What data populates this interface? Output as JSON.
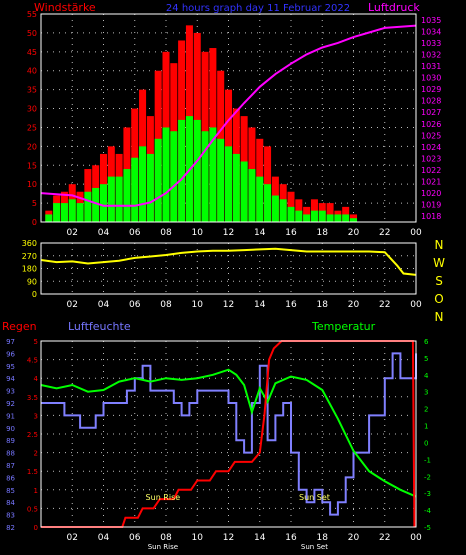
{
  "header": {
    "left_label": "Windstärke",
    "center_title": "24 hours graph day  11 Februar 2022",
    "right_label": "Luftdruck"
  },
  "colors": {
    "background": "#000000",
    "wind_gust": "#ff0000",
    "wind_mean": "#00ff00",
    "pressure": "#ff00ff",
    "direction": "#ffff00",
    "rain": "#ff0000",
    "humidity": "#8080ff",
    "temperature": "#00ff00",
    "title": "#3333ff",
    "axis": "#ffffff",
    "grid": "#bbbbbb",
    "tick_left_top": "#ff0000",
    "tick_right_top": "#ff00ff",
    "tick_direction": "#ffff00",
    "label_humidity": "#7777ff",
    "label_temp": "#00ff00",
    "sun_label": "#ffff66"
  },
  "x_ticks": [
    "02",
    "04",
    "06",
    "08",
    "10",
    "12",
    "14",
    "16",
    "18",
    "20",
    "22",
    "00"
  ],
  "panel1": {
    "left_ticks": [
      0,
      5,
      10,
      15,
      20,
      25,
      30,
      35,
      40,
      45,
      50,
      55
    ],
    "right_ticks": [
      1018,
      1019,
      1020,
      1021,
      1022,
      1023,
      1024,
      1025,
      1026,
      1027,
      1028,
      1029,
      1030,
      1031,
      1032,
      1033,
      1034,
      1035
    ]
  },
  "panel2": {
    "ticks": [
      0,
      90,
      180,
      270,
      360
    ],
    "compass": [
      "N",
      "W",
      "S",
      "O",
      "N"
    ]
  },
  "panel3": {
    "labels": {
      "rain": "Regen",
      "humidity": "Luftfeuchte",
      "temperature": "Temperatur"
    },
    "rain_ticks": [
      0,
      0.5,
      1,
      1.5,
      2,
      2.5,
      3,
      3.5,
      4,
      4.5,
      5
    ],
    "rain_tick_labels": [
      "0",
      "0.5",
      "1",
      "1.5",
      "2",
      "2.5",
      "3",
      "3.5",
      "4",
      "4.5",
      "5"
    ],
    "humidity_ticks": [
      82,
      83,
      84,
      85,
      86,
      87,
      88,
      89,
      90,
      91,
      92,
      93,
      94,
      95,
      96,
      97
    ],
    "temp_ticks": [
      -5,
      -4,
      -3,
      -2,
      -1,
      0,
      1,
      2,
      3,
      4,
      5,
      6
    ],
    "sunrise_label": "Sun Rise",
    "sunset_label": "Sun Set",
    "sunrise_bottom": "Sun Rise",
    "sunset_bottom": "Sun Set",
    "sunrise_hour": 7.8,
    "sunset_hour": 17.5
  },
  "chart_data": [
    {
      "type": "bar",
      "title": "24 hours graph day  11 Februar 2022",
      "ylabel": "Windstärke",
      "y2label": "Luftdruck",
      "x_unit": "hour",
      "ylim": [
        0,
        55
      ],
      "y2lim": [
        1017.5,
        1035.5
      ],
      "series": [
        {
          "name": "gust",
          "x": [
            0.5,
            1,
            1.5,
            2,
            2.5,
            3,
            3.5,
            4,
            4.5,
            5,
            5.5,
            6,
            6.5,
            7,
            7.5,
            8,
            8.5,
            9,
            9.5,
            10,
            10.5,
            11,
            11.5,
            12,
            12.5,
            13,
            13.5,
            14,
            14.5,
            15,
            15.5,
            16,
            16.5,
            17,
            17.5,
            18,
            18.5,
            19,
            19.5,
            20
          ],
          "values": [
            3,
            7,
            8,
            10,
            8,
            14,
            15,
            18,
            20,
            18,
            25,
            30,
            35,
            28,
            40,
            45,
            42,
            48,
            52,
            50,
            45,
            46,
            40,
            35,
            30,
            28,
            25,
            22,
            20,
            12,
            10,
            8,
            6,
            4,
            6,
            5,
            5,
            3,
            4,
            2
          ]
        },
        {
          "name": "mean",
          "x": [
            0.5,
            1,
            1.5,
            2,
            2.5,
            3,
            3.5,
            4,
            4.5,
            5,
            5.5,
            6,
            6.5,
            7,
            7.5,
            8,
            8.5,
            9,
            9.5,
            10,
            10.5,
            11,
            11.5,
            12,
            12.5,
            13,
            13.5,
            14,
            14.5,
            15,
            15.5,
            16,
            16.5,
            17,
            17.5,
            18,
            18.5,
            19,
            19.5,
            20
          ],
          "values": [
            2,
            5,
            5,
            6,
            5,
            8,
            9,
            10,
            12,
            12,
            14,
            17,
            20,
            18,
            22,
            25,
            24,
            27,
            28,
            27,
            24,
            25,
            22,
            20,
            18,
            16,
            14,
            12,
            10,
            7,
            6,
            4,
            3,
            2,
            3,
            3,
            2,
            2,
            2,
            1
          ]
        },
        {
          "name": "pressure",
          "x": [
            0,
            2,
            4,
            6,
            7,
            8,
            9,
            10,
            11,
            12,
            13,
            14,
            15,
            16,
            17,
            18,
            19,
            20,
            21,
            22,
            23,
            24
          ],
          "values": [
            1020,
            1019.8,
            1018.9,
            1018.9,
            1019.2,
            1020,
            1021.2,
            1022.8,
            1024.6,
            1026.3,
            1027.8,
            1029.2,
            1030.3,
            1031.2,
            1032.0,
            1032.6,
            1033.0,
            1033.5,
            1033.9,
            1034.3,
            1034.4,
            1034.5
          ]
        }
      ]
    },
    {
      "type": "line",
      "ylabel": "Windrichtung",
      "x_unit": "hour",
      "ylim": [
        0,
        360
      ],
      "series": [
        {
          "name": "direction",
          "x": [
            0,
            1,
            2,
            3,
            4,
            5,
            6,
            7,
            8,
            9,
            10,
            11,
            12,
            13,
            14,
            15,
            16,
            17,
            18,
            19,
            20,
            21,
            22,
            22.8,
            23.2,
            24
          ],
          "values": [
            240,
            225,
            230,
            215,
            225,
            235,
            255,
            265,
            275,
            290,
            300,
            305,
            305,
            310,
            315,
            320,
            310,
            300,
            300,
            300,
            300,
            300,
            295,
            200,
            145,
            135
          ]
        }
      ]
    },
    {
      "type": "line",
      "x_unit": "hour",
      "series": [
        {
          "name": "Regen",
          "ylim": [
            0,
            5
          ],
          "x": [
            0,
            5.2,
            5.4,
            6.2,
            6.5,
            7.2,
            7.6,
            8.5,
            8.8,
            9.6,
            10,
            10.8,
            11.2,
            12,
            12.4,
            13.5,
            14,
            14.3,
            14.6,
            14.9,
            15.4,
            23.8,
            23.9
          ],
          "values": [
            0,
            0,
            0.25,
            0.25,
            0.5,
            0.5,
            0.75,
            0.75,
            1,
            1,
            1.25,
            1.25,
            1.5,
            1.5,
            1.75,
            1.75,
            2,
            3,
            4.5,
            4.8,
            5,
            5,
            0
          ]
        },
        {
          "name": "Luftfeuchte",
          "ylim": [
            82,
            97
          ],
          "x": [
            0,
            1,
            1.5,
            2.5,
            3.5,
            4,
            5,
            5.5,
            6,
            6.5,
            7,
            8,
            8.5,
            9,
            9.5,
            10,
            11,
            12,
            12.5,
            13,
            13.5,
            14,
            14.5,
            15,
            15.5,
            16,
            16.5,
            17,
            17.5,
            18,
            18.5,
            19,
            19.5,
            20,
            21,
            22,
            22.5,
            23,
            24
          ],
          "values": [
            92,
            92,
            91,
            90,
            91,
            92,
            92,
            93,
            94,
            95,
            93,
            93,
            92,
            91,
            92,
            93,
            93,
            92,
            89,
            88,
            92,
            95,
            89,
            91,
            92,
            88,
            85,
            84,
            85,
            84,
            83,
            84,
            86,
            88,
            91,
            94,
            96,
            94,
            96
          ]
        },
        {
          "name": "Temperatur",
          "ylim": [
            -5,
            6
          ],
          "x": [
            0,
            1,
            2,
            3,
            4,
            5,
            6,
            7,
            8,
            9,
            10,
            11,
            12,
            12.5,
            13,
            13.5,
            14,
            14.5,
            15,
            16,
            17,
            18,
            19,
            20,
            21,
            22,
            23,
            24
          ],
          "values": [
            3.4,
            3.2,
            3.4,
            3.0,
            3.1,
            3.6,
            3.8,
            3.6,
            3.8,
            3.7,
            3.8,
            4.0,
            4.3,
            4.0,
            3.4,
            1.8,
            3.2,
            2.4,
            3.5,
            3.9,
            3.7,
            3.1,
            1.4,
            -0.5,
            -1.7,
            -2.3,
            -2.8,
            -3.2
          ]
        }
      ]
    }
  ]
}
